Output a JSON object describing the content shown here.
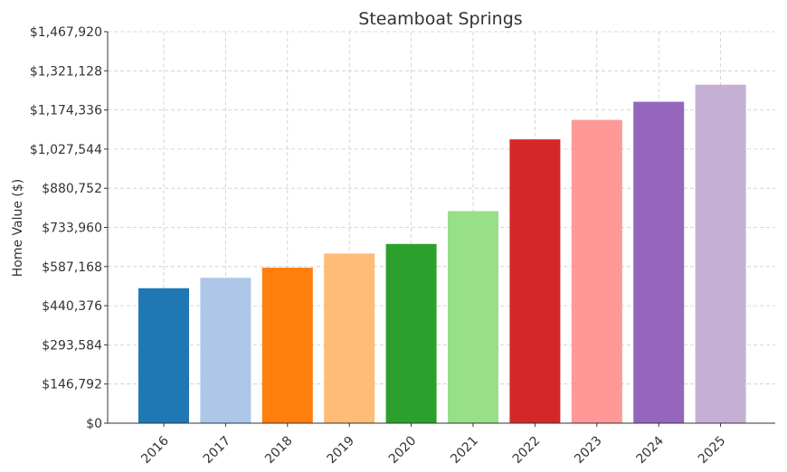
{
  "chart_data": {
    "type": "bar",
    "title": "Steamboat Springs",
    "xlabel": "",
    "ylabel": "Home Value ($)",
    "categories": [
      "2016",
      "2017",
      "2018",
      "2019",
      "2020",
      "2021",
      "2022",
      "2023",
      "2024",
      "2025"
    ],
    "values": [
      506000,
      545000,
      583000,
      636000,
      672000,
      795000,
      1064000,
      1137000,
      1205000,
      1269000
    ],
    "colors": [
      "#1f77b4",
      "#aec7e8",
      "#ff7f0e",
      "#ffbb78",
      "#2ca02c",
      "#98df8a",
      "#d62728",
      "#ff9896",
      "#9467bd",
      "#c5b0d5"
    ],
    "ylim": [
      0,
      1467920
    ],
    "yticks": [
      0,
      146792,
      293584,
      440376,
      587168,
      733960,
      880752,
      1027544,
      1174336,
      1321128,
      1467920
    ],
    "ytick_labels": [
      "$0",
      "$146,792",
      "$293,584",
      "$440,376",
      "$587,168",
      "$733,960",
      "$880,752",
      "$1,027,544",
      "$1,174,336",
      "$1,321,128",
      "$1,467,920"
    ],
    "grid": true,
    "x_tick_rotation": 45
  }
}
